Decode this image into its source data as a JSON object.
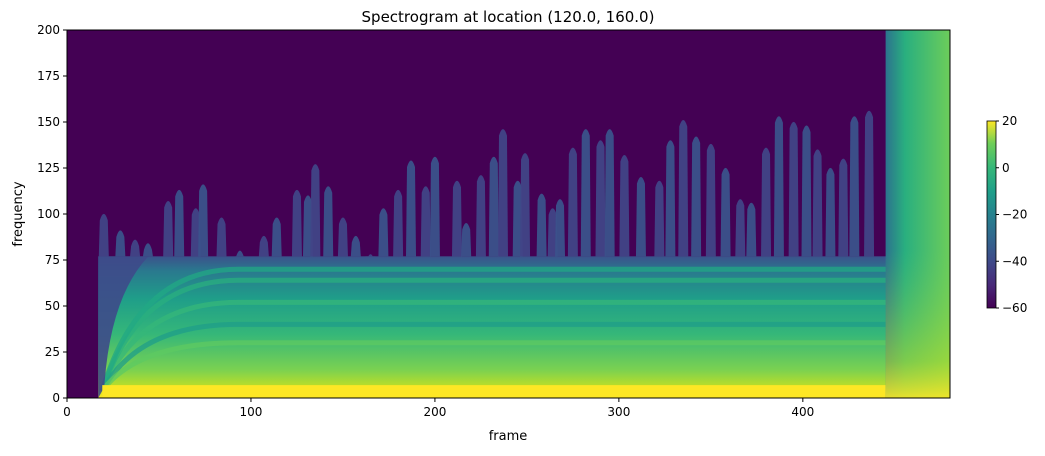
{
  "chart_data": {
    "type": "heatmap",
    "title": "Spectrogram at location (120.0, 160.0)",
    "xlabel": "frame",
    "ylabel": "frequency",
    "xlim": [
      0,
      480
    ],
    "ylim": [
      0,
      200
    ],
    "xticks": [
      0,
      100,
      200,
      300,
      400
    ],
    "yticks": [
      0,
      25,
      50,
      75,
      100,
      125,
      150,
      175,
      200
    ],
    "colorbar": {
      "colormap": "viridis",
      "range": [
        -60,
        20
      ],
      "ticks": [
        20,
        0,
        -20,
        -40,
        -60
      ]
    },
    "signal_start_frame": 17,
    "transition_frame": 445,
    "harmonic_band_top_frequency": 77,
    "colors": {
      "background": "#440154",
      "low": "#3b528b",
      "mid": "#21918c",
      "high": "#5ec962",
      "peak": "#fde725"
    },
    "burst_columns": [
      {
        "frame": 20,
        "frequency": 102
      },
      {
        "frame": 29,
        "frequency": 93
      },
      {
        "frame": 37,
        "frequency": 88
      },
      {
        "frame": 44,
        "frequency": 86
      },
      {
        "frame": 55,
        "frequency": 109
      },
      {
        "frame": 61,
        "frequency": 115
      },
      {
        "frame": 70,
        "frequency": 105
      },
      {
        "frame": 74,
        "frequency": 118
      },
      {
        "frame": 84,
        "frequency": 100
      },
      {
        "frame": 94,
        "frequency": 82
      },
      {
        "frame": 107,
        "frequency": 90
      },
      {
        "frame": 114,
        "frequency": 100
      },
      {
        "frame": 125,
        "frequency": 115
      },
      {
        "frame": 131,
        "frequency": 112
      },
      {
        "frame": 135,
        "frequency": 129
      },
      {
        "frame": 142,
        "frequency": 117
      },
      {
        "frame": 150,
        "frequency": 100
      },
      {
        "frame": 157,
        "frequency": 90
      },
      {
        "frame": 165,
        "frequency": 80
      },
      {
        "frame": 172,
        "frequency": 105
      },
      {
        "frame": 180,
        "frequency": 115
      },
      {
        "frame": 187,
        "frequency": 131
      },
      {
        "frame": 195,
        "frequency": 117
      },
      {
        "frame": 200,
        "frequency": 133
      },
      {
        "frame": 212,
        "frequency": 120
      },
      {
        "frame": 217,
        "frequency": 97
      },
      {
        "frame": 225,
        "frequency": 123
      },
      {
        "frame": 232,
        "frequency": 133
      },
      {
        "frame": 237,
        "frequency": 148
      },
      {
        "frame": 245,
        "frequency": 120
      },
      {
        "frame": 249,
        "frequency": 135
      },
      {
        "frame": 258,
        "frequency": 113
      },
      {
        "frame": 264,
        "frequency": 105
      },
      {
        "frame": 268,
        "frequency": 110
      },
      {
        "frame": 275,
        "frequency": 138
      },
      {
        "frame": 282,
        "frequency": 148
      },
      {
        "frame": 290,
        "frequency": 142
      },
      {
        "frame": 295,
        "frequency": 148
      },
      {
        "frame": 303,
        "frequency": 134
      },
      {
        "frame": 312,
        "frequency": 122
      },
      {
        "frame": 322,
        "frequency": 120
      },
      {
        "frame": 328,
        "frequency": 142
      },
      {
        "frame": 335,
        "frequency": 153
      },
      {
        "frame": 342,
        "frequency": 144
      },
      {
        "frame": 350,
        "frequency": 140
      },
      {
        "frame": 358,
        "frequency": 127
      },
      {
        "frame": 366,
        "frequency": 110
      },
      {
        "frame": 372,
        "frequency": 108
      },
      {
        "frame": 380,
        "frequency": 138
      },
      {
        "frame": 387,
        "frequency": 155
      },
      {
        "frame": 395,
        "frequency": 152
      },
      {
        "frame": 402,
        "frequency": 150
      },
      {
        "frame": 408,
        "frequency": 137
      },
      {
        "frame": 415,
        "frequency": 127
      },
      {
        "frame": 422,
        "frequency": 132
      },
      {
        "frame": 428,
        "frequency": 155
      },
      {
        "frame": 436,
        "frequency": 158
      }
    ]
  }
}
